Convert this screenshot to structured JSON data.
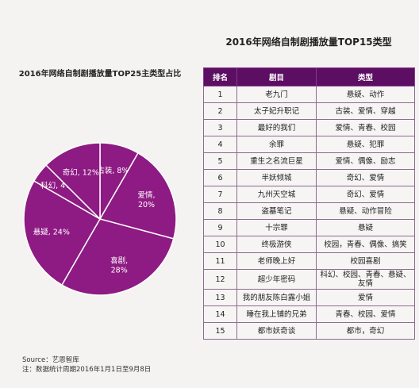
{
  "pie_title": "2016年网络自制剧播放量TOP25主类型占比",
  "table_title": "2016年网络自制剧播放量TOP15类型",
  "table": {
    "headers": [
      "排名",
      "剧目",
      "类型"
    ],
    "rows": [
      {
        "rank": "1",
        "title": "老九门",
        "genre": "悬疑、动作"
      },
      {
        "rank": "2",
        "title": "太子妃升职记",
        "genre": "古装、爱情、穿越"
      },
      {
        "rank": "3",
        "title": "最好的我们",
        "genre": "爱情、青春、校园"
      },
      {
        "rank": "4",
        "title": "余罪",
        "genre": "悬疑、犯罪"
      },
      {
        "rank": "5",
        "title": "重生之名流巨星",
        "genre": "爱情、偶像、励志"
      },
      {
        "rank": "6",
        "title": "半妖倾城",
        "genre": "奇幻、爱情"
      },
      {
        "rank": "7",
        "title": "九州天空城",
        "genre": "奇幻、爱情"
      },
      {
        "rank": "8",
        "title": "盗墓笔记",
        "genre": "悬疑、动作冒险"
      },
      {
        "rank": "9",
        "title": "十宗罪",
        "genre": "悬疑"
      },
      {
        "rank": "10",
        "title": "终极游侠",
        "genre": "校园，青春、偶像、搞笑"
      },
      {
        "rank": "11",
        "title": "老师晚上好",
        "genre": "校园喜剧"
      },
      {
        "rank": "12",
        "title": "超少年密码",
        "genre": "科幻、校园、青春、悬疑、友情"
      },
      {
        "rank": "13",
        "title": "我的朋友陈白露小姐",
        "genre": "爱情"
      },
      {
        "rank": "14",
        "title": "睡在我上铺的兄弟",
        "genre": "青春、校园、爱情"
      },
      {
        "rank": "15",
        "title": "都市妖奇谈",
        "genre": "都市，奇幻"
      }
    ]
  },
  "source": {
    "line1": "Source：艺恩智库",
    "line2": "注：数据统计周期2016年1月1日至9月8日"
  },
  "chart_data": {
    "type": "pie",
    "title": "2016年网络自制剧播放量TOP25主类型占比",
    "unit": "%",
    "slices": [
      {
        "label": "古装, 8%",
        "value": 8
      },
      {
        "label": "爱情,\n20%",
        "value": 20
      },
      {
        "label": "喜剧,\n28%",
        "value": 28
      },
      {
        "label": "悬疑, 24%",
        "value": 24
      },
      {
        "label": "科幻, 4%",
        "value": 4
      },
      {
        "label": "奇幻, 12%",
        "value": 12
      }
    ],
    "colors": {
      "slice": "#8e1a83",
      "border": "#ffffff",
      "label": "#ffffff"
    }
  }
}
